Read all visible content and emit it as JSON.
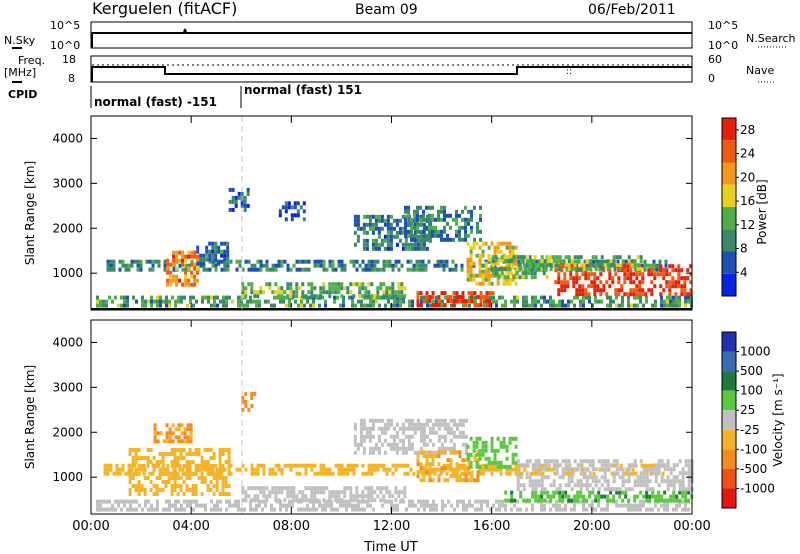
{
  "header": {
    "station": "Kerguelen (fitACF)",
    "beam": "Beam 09",
    "date": "06/Feb/2011"
  },
  "aux_panels": {
    "nsky_label": "N.Sky",
    "nsky_ticks": [
      "10^5",
      "10^0"
    ],
    "nsearch_label": "N.Search",
    "nsearch_ticks": [
      "10^5",
      "10^0"
    ],
    "freq_label_line1": "Freq.",
    "freq_label_line2": "[MHz]",
    "freq_ticks": [
      "18",
      "8"
    ],
    "nave_label": "Nave",
    "nave_ticks": [
      "60",
      "0"
    ],
    "cpid_label": "CPID",
    "cpid_modes": [
      "normal (fast) -151",
      "normal (fast) 151"
    ]
  },
  "colors": {
    "power_scale": [
      "#0a22e6",
      "#1e4fb4",
      "#3a8a68",
      "#4fae4a",
      "#e6d21e",
      "#f59a18",
      "#f05a10",
      "#e61e0a"
    ],
    "velocity_scale": [
      "#2030b0",
      "#3a6ab4",
      "#1e7a3a",
      "#5ac83c",
      "#c0c0c0",
      "#f5b428",
      "#f58a1e",
      "#f05018",
      "#e61414"
    ]
  },
  "chart_data": [
    {
      "type": "heatmap",
      "title": "Power",
      "xlabel": "Time UT",
      "ylabel": "Slant Range [km]",
      "x_ticks": [
        "00:00",
        "04:00",
        "08:00",
        "12:00",
        "16:00",
        "20:00",
        "00:00"
      ],
      "y_ticks": [
        "1000",
        "2000",
        "3000",
        "4000"
      ],
      "xlim_hours": [
        0,
        24
      ],
      "ylim_km": [
        180,
        4500
      ],
      "colorbar_label": "Power [dB]",
      "colorbar_ticks": [
        "4",
        "8",
        "12",
        "16",
        "20",
        "24",
        "28"
      ],
      "color_range": [
        0,
        30
      ],
      "regions": [
        {
          "t0": 0.2,
          "t1": 24,
          "r0": 250,
          "r1": 500,
          "v": 11
        },
        {
          "t0": 0.5,
          "t1": 23,
          "r0": 1080,
          "r1": 1300,
          "v": 9
        },
        {
          "t0": 3.0,
          "t1": 4.2,
          "r0": 700,
          "r1": 1500,
          "v": 22
        },
        {
          "t0": 4.2,
          "t1": 5.5,
          "r0": 1200,
          "r1": 1700,
          "v": 8
        },
        {
          "t0": 6.0,
          "t1": 12.5,
          "r0": 450,
          "r1": 800,
          "v": 12
        },
        {
          "t0": 10.5,
          "t1": 13.5,
          "r0": 1500,
          "r1": 2300,
          "v": 8
        },
        {
          "t0": 12.5,
          "t1": 15.5,
          "r0": 1700,
          "r1": 2500,
          "v": 9
        },
        {
          "t0": 13.0,
          "t1": 16.0,
          "r0": 250,
          "r1": 600,
          "v": 27
        },
        {
          "t0": 15.0,
          "t1": 17.0,
          "r0": 800,
          "r1": 1700,
          "v": 18
        },
        {
          "t0": 16.0,
          "t1": 18.5,
          "r0": 900,
          "r1": 1400,
          "v": 14
        },
        {
          "t0": 18.5,
          "t1": 24,
          "r0": 500,
          "r1": 1200,
          "v": 27
        },
        {
          "t0": 17.0,
          "t1": 22.0,
          "r0": 1100,
          "r1": 1400,
          "v": 12
        },
        {
          "t0": 5.5,
          "t1": 6.3,
          "r0": 2400,
          "r1": 2900,
          "v": 6
        },
        {
          "t0": 7.5,
          "t1": 8.5,
          "r0": 2200,
          "r1": 2600,
          "v": 5
        }
      ]
    },
    {
      "type": "heatmap",
      "title": "Velocity",
      "xlabel": "Time UT",
      "ylabel": "Slant Range [km]",
      "x_ticks": [
        "00:00",
        "04:00",
        "08:00",
        "12:00",
        "16:00",
        "20:00",
        "00:00"
      ],
      "y_ticks": [
        "1000",
        "2000",
        "3000",
        "4000"
      ],
      "xlim_hours": [
        0,
        24
      ],
      "ylim_km": [
        180,
        4500
      ],
      "colorbar_label": "Velocity [m s⁻¹]",
      "colorbar_ticks": [
        "1000",
        "500",
        "100",
        "25",
        "-25",
        "-100",
        "-500",
        "-1000"
      ],
      "regions": [
        {
          "t0": 0.2,
          "t1": 24,
          "r0": 250,
          "r1": 500,
          "v": 0
        },
        {
          "t0": 0.5,
          "t1": 23,
          "r0": 1080,
          "r1": 1300,
          "v": -60
        },
        {
          "t0": 1.5,
          "t1": 5.5,
          "r0": 650,
          "r1": 1650,
          "v": -70
        },
        {
          "t0": 6.0,
          "t1": 12.5,
          "r0": 450,
          "r1": 800,
          "v": 0
        },
        {
          "t0": 10.5,
          "t1": 15.0,
          "r0": 1500,
          "r1": 2300,
          "v": 0
        },
        {
          "t0": 13.0,
          "t1": 15.5,
          "r0": 900,
          "r1": 1600,
          "v": -80
        },
        {
          "t0": 15.0,
          "t1": 17.0,
          "r0": 1200,
          "r1": 1900,
          "v": 60
        },
        {
          "t0": 16.5,
          "t1": 24,
          "r0": 450,
          "r1": 700,
          "v": 80
        },
        {
          "t0": 17.0,
          "t1": 24,
          "r0": 700,
          "r1": 1400,
          "v": 0
        },
        {
          "t0": 2.5,
          "t1": 4.0,
          "r0": 1800,
          "r1": 2200,
          "v": -120
        },
        {
          "t0": 6.0,
          "t1": 6.5,
          "r0": 2500,
          "r1": 2900,
          "v": -150
        }
      ]
    }
  ]
}
